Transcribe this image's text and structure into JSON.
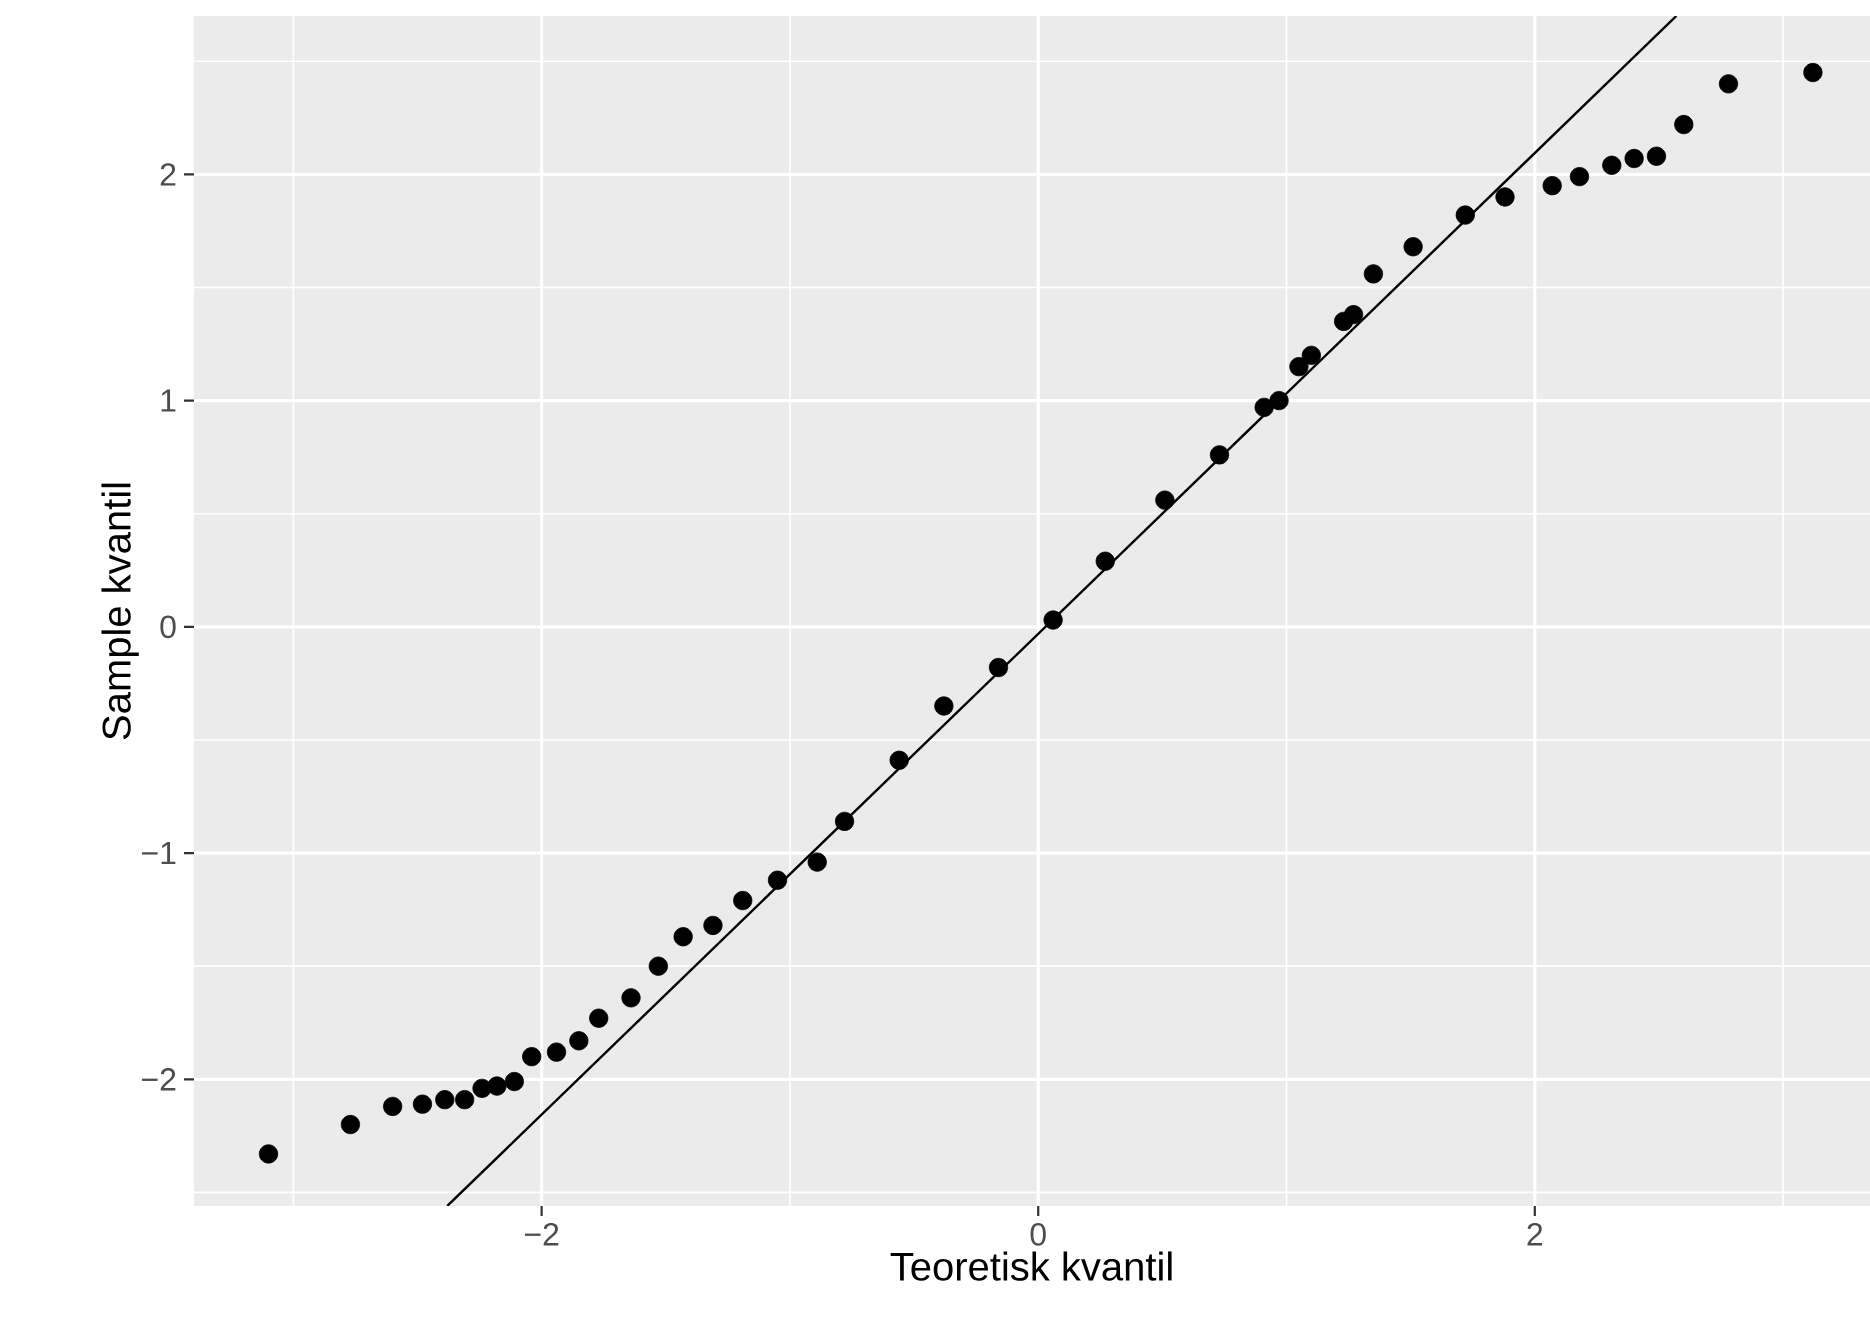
{
  "chart_data": {
    "type": "scatter",
    "xlabel": "Teoretisk kvantil",
    "ylabel": "Sample kvantil",
    "xlim": [
      -3.4,
      3.35
    ],
    "ylim": [
      -2.56,
      2.7
    ],
    "xticks": [
      {
        "value": -2,
        "label": "−2"
      },
      0,
      2
    ],
    "yticks": [
      {
        "value": -2,
        "label": "−2"
      },
      {
        "value": -1,
        "label": "−1"
      },
      0,
      1,
      2
    ],
    "grid": true,
    "marker": "circle",
    "series": [
      {
        "type": "scatter",
        "color": "#000000",
        "x": [
          -3.1,
          -2.77,
          -2.6,
          -2.48,
          -2.39,
          -2.31,
          -2.24,
          -2.18,
          -2.11,
          -2.04,
          -1.94,
          -1.85,
          -1.77,
          -1.64,
          -1.53,
          -1.43,
          -1.31,
          -1.19,
          -1.05,
          -0.89,
          -0.78,
          -0.56,
          -0.38,
          -0.16,
          0.06,
          0.27,
          0.51,
          0.73,
          0.91,
          0.97,
          1.05,
          1.1,
          1.23,
          1.27,
          1.35,
          1.51,
          1.72,
          1.88,
          2.07,
          2.18,
          2.31,
          2.4,
          2.49,
          2.6,
          2.78,
          3.12
        ],
        "values": [
          -2.33,
          -2.2,
          -2.12,
          -2.11,
          -2.09,
          -2.09,
          -2.04,
          -2.03,
          -2.01,
          -1.9,
          -1.88,
          -1.83,
          -1.73,
          -1.64,
          -1.5,
          -1.37,
          -1.32,
          -1.21,
          -1.12,
          -1.04,
          -0.86,
          -0.59,
          -0.35,
          -0.18,
          0.03,
          0.29,
          0.56,
          0.76,
          0.97,
          1.0,
          1.15,
          1.2,
          1.35,
          1.38,
          1.56,
          1.68,
          1.82,
          1.9,
          1.95,
          1.99,
          2.04,
          2.07,
          2.08,
          2.22,
          2.4,
          2.45
        ]
      },
      {
        "type": "line",
        "color": "#000000",
        "marker": "none",
        "x": [
          -2.38,
          2.57
        ],
        "values": [
          -2.56,
          2.7
        ]
      }
    ]
  }
}
